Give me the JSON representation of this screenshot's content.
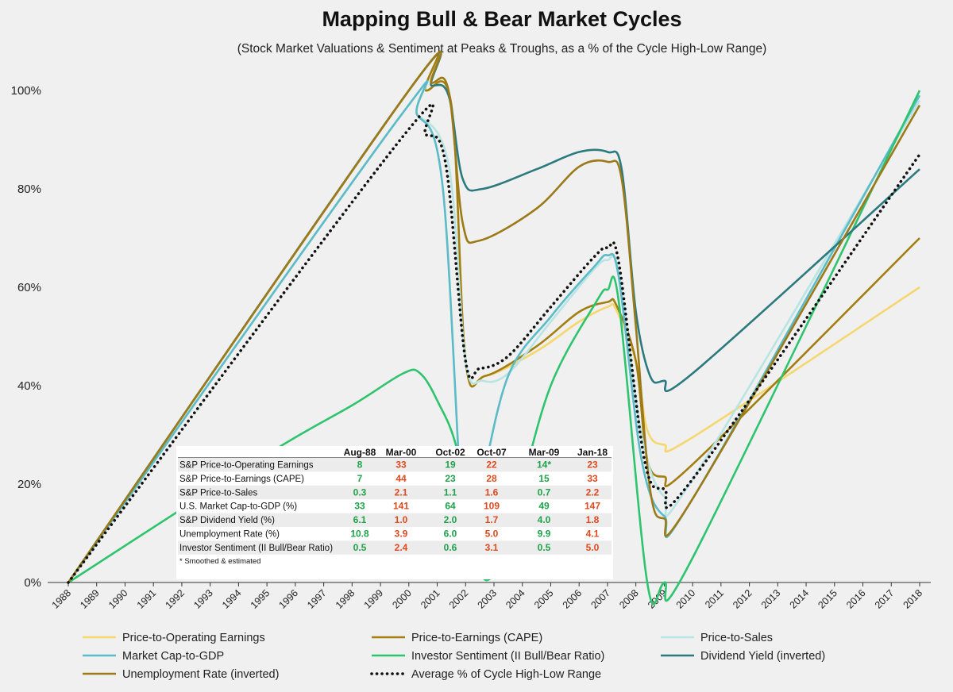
{
  "chart_data": {
    "type": "line",
    "title": "Mapping Bull & Bear Market Cycles",
    "subtitle": "(Stock Market Valuations & Sentiment at Peaks & Troughs, as a % of the Cycle High-Low Range)",
    "xlabel": "",
    "ylabel": "",
    "ylim": [
      0,
      100
    ],
    "yticks": [
      "0%",
      "20%",
      "40%",
      "60%",
      "80%",
      "100%"
    ],
    "ytick_values": [
      0,
      20,
      40,
      60,
      80,
      100
    ],
    "x_categories": [
      "1988",
      "1989",
      "1990",
      "1991",
      "1992",
      "1993",
      "1994",
      "1995",
      "1996",
      "1997",
      "1998",
      "1999",
      "2000",
      "2001",
      "2002",
      "2003",
      "2004",
      "2005",
      "2006",
      "2007",
      "2008",
      "2009",
      "2010",
      "2011",
      "2012",
      "2013",
      "2014",
      "2015",
      "2016",
      "2017",
      "2018"
    ],
    "grid": false,
    "legend_position": "bottom",
    "series": [
      {
        "name": "Price-to-Operating Earnings",
        "color": "#f5d76e",
        "style": "solid",
        "points": [
          [
            1988.0,
            0
          ],
          [
            2000.0,
            100
          ],
          [
            2000.6,
            100
          ],
          [
            2001.5,
            97
          ],
          [
            2002.0,
            45
          ],
          [
            2002.7,
            42
          ],
          [
            2004.5,
            47
          ],
          [
            2006.0,
            53
          ],
          [
            2007.0,
            56
          ],
          [
            2007.3,
            55.5
          ],
          [
            2008.0,
            45
          ],
          [
            2008.4,
            31
          ],
          [
            2009.0,
            28
          ],
          [
            2010.0,
            29.5
          ],
          [
            2018.0,
            60
          ]
        ]
      },
      {
        "name": "Price-to-Earnings (CAPE)",
        "color": "#a37f12",
        "style": "solid",
        "points": [
          [
            1988.0,
            0
          ],
          [
            2000.0,
            100
          ],
          [
            2000.6,
            100
          ],
          [
            2001.5,
            97
          ],
          [
            2002.0,
            45
          ],
          [
            2002.7,
            42
          ],
          [
            2004.5,
            48
          ],
          [
            2006.0,
            55
          ],
          [
            2007.0,
            57
          ],
          [
            2007.3,
            56.5
          ],
          [
            2008.0,
            45
          ],
          [
            2008.4,
            25
          ],
          [
            2009.0,
            21.5
          ],
          [
            2010.0,
            24
          ],
          [
            2018.0,
            70
          ]
        ]
      },
      {
        "name": "Price-to-Sales",
        "color": "#b8e4e4",
        "style": "solid",
        "points": [
          [
            1988.0,
            0
          ],
          [
            1999.6,
            94
          ],
          [
            2000.3,
            95
          ],
          [
            2001.4,
            85
          ],
          [
            2002.0,
            45
          ],
          [
            2002.6,
            41
          ],
          [
            2003.5,
            42.5
          ],
          [
            2005.0,
            53
          ],
          [
            2006.5,
            63.5
          ],
          [
            2007.0,
            65.5
          ],
          [
            2007.4,
            63
          ],
          [
            2008.2,
            30
          ],
          [
            2009.0,
            17.5
          ],
          [
            2010.0,
            21
          ],
          [
            2018.0,
            98
          ]
        ]
      },
      {
        "name": "Market Cap-to-GDP",
        "color": "#5bbbc7",
        "style": "solid",
        "points": [
          [
            1988.0,
            0
          ],
          [
            1999.6,
            94
          ],
          [
            2000.3,
            95
          ],
          [
            2001.2,
            80
          ],
          [
            2002.0,
            4
          ],
          [
            2002.5,
            18
          ],
          [
            2003.5,
            42
          ],
          [
            2005.0,
            54
          ],
          [
            2006.5,
            64
          ],
          [
            2007.0,
            66.5
          ],
          [
            2007.4,
            62
          ],
          [
            2008.2,
            25
          ],
          [
            2009.0,
            13.5
          ],
          [
            2010.0,
            17
          ],
          [
            2018.0,
            99
          ]
        ]
      },
      {
        "name": "Investor Sentiment (II Bull/Bear Ratio)",
        "color": "#2ec46e",
        "style": "solid",
        "points": [
          [
            1988.0,
            0
          ],
          [
            1995.0,
            26
          ],
          [
            1998.0,
            36
          ],
          [
            1999.8,
            42.5
          ],
          [
            2000.4,
            42.5
          ],
          [
            2001.0,
            37
          ],
          [
            2001.7,
            27
          ],
          [
            2002.3,
            6
          ],
          [
            2002.9,
            1
          ],
          [
            2003.8,
            16
          ],
          [
            2005.0,
            40
          ],
          [
            2006.6,
            57
          ],
          [
            2007.0,
            59.5
          ],
          [
            2007.4,
            57
          ],
          [
            2008.4,
            0
          ],
          [
            2009.0,
            0
          ],
          [
            2010.0,
            5
          ],
          [
            2018.0,
            100
          ]
        ]
      },
      {
        "name": "Dividend Yield (inverted)",
        "color": "#2a7a7e",
        "style": "solid",
        "points": [
          [
            1988.0,
            0
          ],
          [
            2000.0,
            100
          ],
          [
            2000.8,
            101
          ],
          [
            2001.4,
            99
          ],
          [
            2001.9,
            82
          ],
          [
            2002.6,
            80
          ],
          [
            2004.5,
            84
          ],
          [
            2006.0,
            87.5
          ],
          [
            2007.0,
            87.5
          ],
          [
            2007.5,
            84
          ],
          [
            2008.0,
            55
          ],
          [
            2008.5,
            42
          ],
          [
            2009.0,
            41
          ],
          [
            2010.0,
            42.5
          ],
          [
            2018.0,
            84
          ]
        ]
      },
      {
        "name": "Unemployment Rate (inverted)",
        "color": "#9c7a18",
        "style": "solid",
        "points": [
          [
            1988.0,
            0
          ],
          [
            2000.0,
            100
          ],
          [
            2000.8,
            101.5
          ],
          [
            2001.4,
            100
          ],
          [
            2001.9,
            73
          ],
          [
            2002.5,
            69.5
          ],
          [
            2004.5,
            76
          ],
          [
            2006.0,
            84.5
          ],
          [
            2007.0,
            85.5
          ],
          [
            2007.5,
            82
          ],
          [
            2008.0,
            52
          ],
          [
            2008.5,
            19
          ],
          [
            2009.0,
            13
          ],
          [
            2010.0,
            17
          ],
          [
            2018.0,
            97
          ]
        ]
      },
      {
        "name": "Average % of Cycle High-Low Range",
        "color": "#111111",
        "style": "dotted",
        "points": [
          [
            1988.0,
            0
          ],
          [
            1999.7,
            90
          ],
          [
            2000.6,
            91
          ],
          [
            2001.3,
            85
          ],
          [
            2002.0,
            45
          ],
          [
            2002.5,
            43.5
          ],
          [
            2003.5,
            46
          ],
          [
            2005.0,
            56
          ],
          [
            2006.5,
            66
          ],
          [
            2007.0,
            68
          ],
          [
            2007.4,
            65
          ],
          [
            2008.3,
            25
          ],
          [
            2009.0,
            19
          ],
          [
            2010.0,
            21
          ],
          [
            2018.0,
            87
          ]
        ]
      }
    ],
    "table": {
      "headers": [
        "Aug-88",
        "Mar-00",
        "Oct-02",
        "Oct-07",
        "Mar-09",
        "Jan-18"
      ],
      "rows": [
        {
          "label": "S&P Price-to-Operating Earnings",
          "values": [
            "8",
            "33",
            "19",
            "22",
            "14*",
            "23"
          ],
          "colors": [
            "#1ea34a",
            "#e0491e",
            "#1ea34a",
            "#e0491e",
            "#1ea34a",
            "#e0491e"
          ]
        },
        {
          "label": "S&P Price-to-Earnings (CAPE)",
          "values": [
            "7",
            "44",
            "23",
            "28",
            "15",
            "33"
          ],
          "colors": [
            "#1ea34a",
            "#e0491e",
            "#1ea34a",
            "#e0491e",
            "#1ea34a",
            "#e0491e"
          ]
        },
        {
          "label": "S&P Price-to-Sales",
          "values": [
            "0.3",
            "2.1",
            "1.1",
            "1.6",
            "0.7",
            "2.2"
          ],
          "colors": [
            "#1ea34a",
            "#e0491e",
            "#1ea34a",
            "#e0491e",
            "#1ea34a",
            "#e0491e"
          ]
        },
        {
          "label": "U.S. Market Cap-to-GDP (%)",
          "values": [
            "33",
            "141",
            "64",
            "109",
            "49",
            "147"
          ],
          "colors": [
            "#1ea34a",
            "#e0491e",
            "#1ea34a",
            "#e0491e",
            "#1ea34a",
            "#e0491e"
          ]
        },
        {
          "label": "S&P Dividend Yield (%)",
          "values": [
            "6.1",
            "1.0",
            "2.0",
            "1.7",
            "4.0",
            "1.8"
          ],
          "colors": [
            "#1ea34a",
            "#e0491e",
            "#1ea34a",
            "#e0491e",
            "#1ea34a",
            "#e0491e"
          ]
        },
        {
          "label": "Unemployment Rate (%)",
          "values": [
            "10.8",
            "3.9",
            "6.0",
            "5.0",
            "9.9",
            "4.1"
          ],
          "colors": [
            "#1ea34a",
            "#e0491e",
            "#1ea34a",
            "#e0491e",
            "#1ea34a",
            "#e0491e"
          ]
        },
        {
          "label": "Investor Sentiment (II Bull/Bear Ratio)",
          "values": [
            "0.5",
            "2.4",
            "0.6",
            "3.1",
            "0.5",
            "5.0"
          ],
          "colors": [
            "#1ea34a",
            "#e0491e",
            "#1ea34a",
            "#e0491e",
            "#1ea34a",
            "#e0491e"
          ]
        }
      ],
      "footnote": "* Smoothed & estimated"
    }
  }
}
